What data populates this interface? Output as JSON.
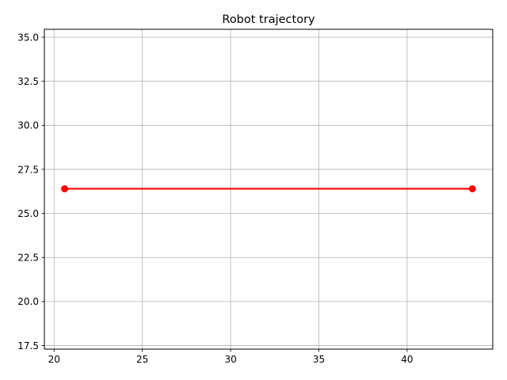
{
  "chart_data": {
    "type": "line",
    "title": "Robot trajectory",
    "xlabel": "",
    "ylabel": "",
    "xlim": [
      19.45,
      44.85
    ],
    "ylim": [
      17.3,
      35.45
    ],
    "xticks": [
      20,
      25,
      30,
      35,
      40
    ],
    "xtick_labels": [
      "20",
      "25",
      "30",
      "35",
      "40"
    ],
    "yticks": [
      17.5,
      20.0,
      22.5,
      25.0,
      27.5,
      30.0,
      32.5,
      35.0
    ],
    "ytick_labels": [
      "17.5",
      "20.0",
      "22.5",
      "25.0",
      "27.5",
      "30.0",
      "32.5",
      "35.0"
    ],
    "grid": true,
    "series": [
      {
        "color": "#ff0000",
        "marker": "circle",
        "x": [
          20.6,
          43.7
        ],
        "y": [
          26.4,
          26.4
        ]
      }
    ]
  }
}
